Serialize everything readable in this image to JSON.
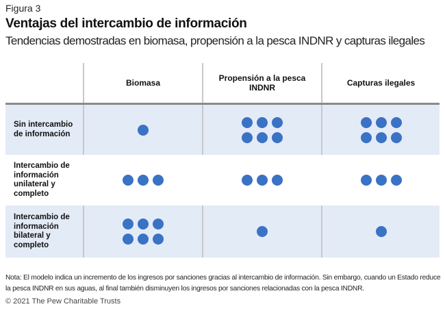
{
  "figure_label": "Figura 3",
  "title": "Ventajas del intercambio de información",
  "subtitle": "Tendencias demostradas en biomasa, propensión a la pesca INDNR y capturas ilegales",
  "columns": [
    "Biomasa",
    "Propensión a la pesca INDNR",
    "Capturas ilegales"
  ],
  "rows": [
    {
      "label": "Sin intercambio de información",
      "dots": [
        1,
        6,
        6
      ]
    },
    {
      "label": "Intercambio de información unilateral y completo",
      "dots": [
        3,
        3,
        3
      ]
    },
    {
      "label": "Intercambio de información bilateral y completo",
      "dots": [
        6,
        1,
        1
      ]
    }
  ],
  "colors": {
    "dot": "#3a72c4",
    "shaded_row": "#e3ebf7"
  },
  "note": "Nota: El modelo indica un incremento de los ingresos por sanciones gracias al intercambio de información. Sin embargo, cuando un Estado reduce la pesca INDNR en sus aguas, al final también disminuyen los ingresos por sanciones relacionadas con la pesca INDNR.",
  "copyright": "© 2021 The Pew Charitable Trusts"
}
